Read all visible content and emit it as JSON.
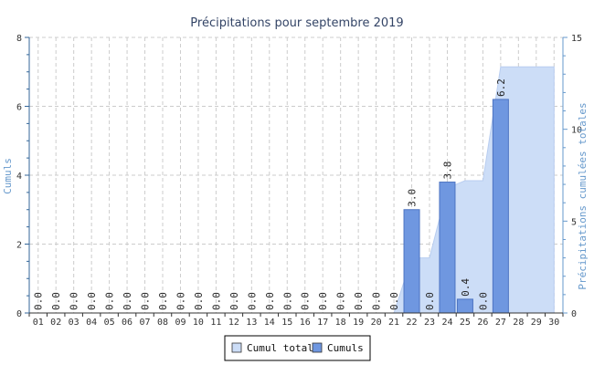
{
  "chart_data": {
    "type": "bar",
    "title": "Précipitations pour septembre 2019",
    "ylabel_left": "Cumuls",
    "ylabel_right": "Précipitations cumulées totales",
    "ylim_left": [
      0,
      8
    ],
    "ylim_right": [
      0,
      15
    ],
    "yticks_left": [
      0,
      2,
      4,
      6,
      8
    ],
    "yticks_right": [
      0,
      5,
      10,
      15
    ],
    "grid": true,
    "legend_position": "bottom-center",
    "categories": [
      "01",
      "02",
      "03",
      "04",
      "05",
      "06",
      "07",
      "08",
      "09",
      "10",
      "11",
      "12",
      "13",
      "14",
      "15",
      "16",
      "17",
      "18",
      "19",
      "20",
      "21",
      "22",
      "23",
      "24",
      "25",
      "26",
      "27",
      "28",
      "29",
      "30"
    ],
    "series": [
      {
        "name": "Cumul total",
        "kind": "area",
        "axis": "right",
        "color": "#ccddf7",
        "values": [
          0,
          0,
          0,
          0,
          0,
          0,
          0,
          0,
          0,
          0,
          0,
          0,
          0,
          0,
          0,
          0,
          0,
          0,
          0,
          0,
          0,
          3.0,
          3.0,
          6.8,
          7.2,
          7.2,
          13.4,
          13.4,
          13.4,
          13.4
        ]
      },
      {
        "name": "Cumuls",
        "kind": "bar",
        "axis": "left",
        "color": "#6f97e0",
        "values": [
          0,
          0,
          0,
          0,
          0,
          0,
          0,
          0,
          0,
          0,
          0,
          0,
          0,
          0,
          0,
          0,
          0,
          0,
          0,
          0,
          0,
          3.0,
          0,
          3.8,
          0.4,
          0,
          6.2,
          null,
          null,
          null
        ],
        "labels": [
          "0.0",
          "0.0",
          "0.0",
          "0.0",
          "0.0",
          "0.0",
          "0.0",
          "0.0",
          "0.0",
          "0.0",
          "0.0",
          "0.0",
          "0.0",
          "0.0",
          "0.0",
          "0.0",
          "0.0",
          "0.0",
          "0.0",
          "0.0",
          "0.0",
          "3.0",
          "0.0",
          "3.8",
          "0.4",
          "0.0",
          "6.2",
          "",
          "",
          ""
        ]
      }
    ]
  }
}
